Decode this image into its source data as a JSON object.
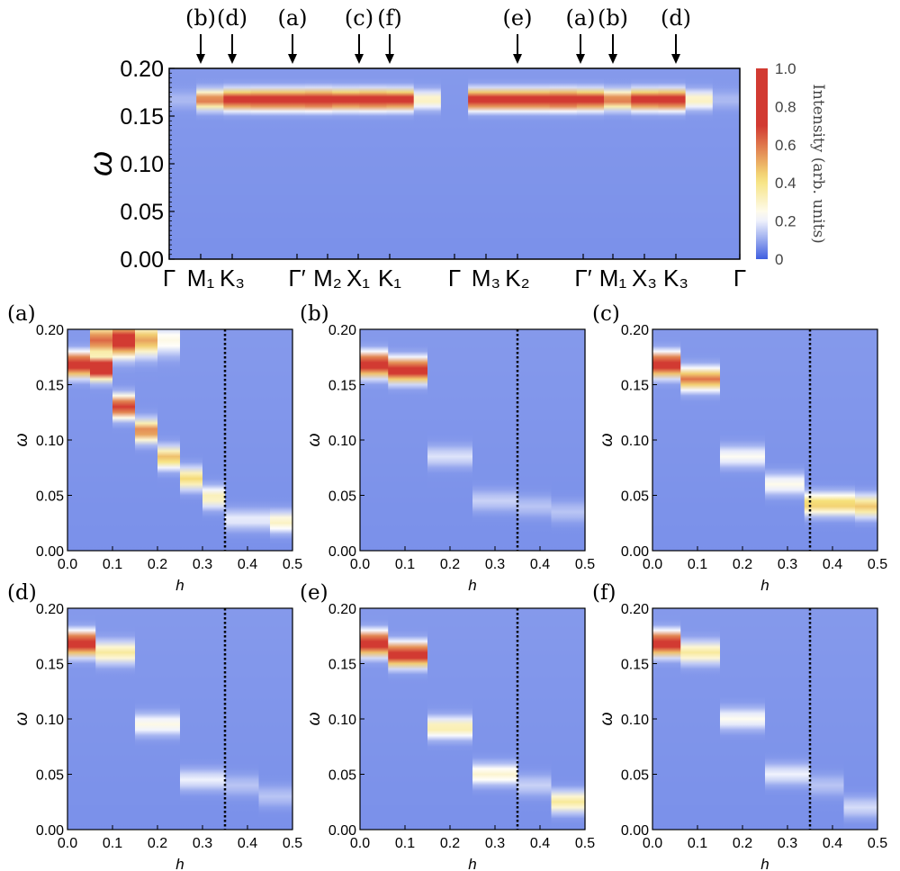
{
  "colorbar": {
    "label": "Intensity (arb. units)",
    "ticks": [
      "0",
      "0.2",
      "0.4",
      "0.6",
      "0.8",
      "1.0"
    ]
  },
  "colors": {
    "low": "#3f5fe0",
    "mid": "#ffffff",
    "yellow": "#f6e27a",
    "high": "#d23a32"
  },
  "chart_data": [
    {
      "type": "heatmap",
      "panel": "top",
      "title": "",
      "xlabel": "",
      "ylabel": "ω",
      "ylim": [
        0,
        0.2
      ],
      "yticks": [
        "0.00",
        "0.05",
        "0.10",
        "0.15",
        "0.20"
      ],
      "xtick_labels": [
        "Γ",
        "M₁",
        "K₃",
        "Γ′",
        "M₂",
        "X₁",
        "K₁",
        "Γ",
        "M₃",
        "K₂",
        "Γ′",
        "M₁",
        "X₃",
        "K₃",
        "Γ"
      ],
      "arrow_labels": [
        "(b)",
        "(d)",
        "(a)",
        "(c)",
        "(f)",
        "(e)",
        "(a)",
        "(b)",
        "(d)"
      ],
      "peak_omega": 0.167,
      "column_peak_intensity": [
        0.05,
        0.55,
        0.9,
        0.95,
        0.95,
        1.0,
        0.9,
        0.95,
        0.9,
        0.25,
        0.0,
        0.95,
        0.95,
        0.95,
        1.0,
        0.9,
        0.55,
        0.9,
        0.95,
        0.25,
        0.05
      ]
    },
    {
      "type": "heatmap",
      "panel": "(a)",
      "xlabel": "h",
      "ylabel": "ω",
      "xlim": [
        0,
        0.5
      ],
      "ylim": [
        0,
        0.2
      ],
      "dashed_x": 0.35,
      "xticks": [
        "0.0",
        "0.1",
        "0.2",
        "0.3",
        "0.4",
        "0.5"
      ],
      "yticks": [
        "0.00",
        "0.05",
        "0.10",
        "0.15",
        "0.20"
      ],
      "h": [
        0.025,
        0.075,
        0.125,
        0.175,
        0.225,
        0.275,
        0.325,
        0.375,
        0.425,
        0.475
      ],
      "omega": [
        0.168,
        0.165,
        0.13,
        0.108,
        0.084,
        0.065,
        0.048,
        0.028,
        0.028,
        0.026
      ],
      "intensity": [
        1.0,
        1.0,
        0.75,
        0.55,
        0.45,
        0.4,
        0.3,
        0.15,
        0.15,
        0.28
      ],
      "upper": [
        0,
        0.55,
        0.85,
        0.45,
        0.18,
        0,
        0,
        0,
        0,
        0
      ]
    },
    {
      "type": "heatmap",
      "panel": "(b)",
      "xlabel": "h",
      "ylabel": "ω",
      "xlim": [
        0,
        0.5
      ],
      "ylim": [
        0,
        0.2
      ],
      "dashed_x": 0.35,
      "xticks": [
        "0.0",
        "0.1",
        "0.2",
        "0.3",
        "0.4",
        "0.5"
      ],
      "yticks": [
        "0.00",
        "0.05",
        "0.10",
        "0.15",
        "0.20"
      ],
      "h": [
        0.025,
        0.1,
        0.2,
        0.3,
        0.4,
        0.45
      ],
      "omega": [
        0.168,
        0.163,
        0.085,
        0.045,
        0.04,
        0.035
      ],
      "intensity": [
        1.0,
        0.95,
        0.12,
        0.1,
        0.08,
        0.08
      ]
    },
    {
      "type": "heatmap",
      "panel": "(c)",
      "xlabel": "h",
      "ylabel": "ω",
      "xlim": [
        0,
        0.5
      ],
      "ylim": [
        0,
        0.2
      ],
      "dashed_x": 0.35,
      "xticks": [
        "0.0",
        "0.1",
        "0.2",
        "0.3",
        "0.4",
        "0.5"
      ],
      "yticks": [
        "0.00",
        "0.05",
        "0.10",
        "0.15",
        "0.20"
      ],
      "h": [
        0.025,
        0.1,
        0.2,
        0.3,
        0.375,
        0.425,
        0.475
      ],
      "omega": [
        0.168,
        0.155,
        0.085,
        0.06,
        0.042,
        0.042,
        0.04
      ],
      "intensity": [
        1.0,
        0.55,
        0.18,
        0.2,
        0.45,
        0.45,
        0.45
      ]
    },
    {
      "type": "heatmap",
      "panel": "(d)",
      "xlabel": "h",
      "ylabel": "ω",
      "xlim": [
        0,
        0.5
      ],
      "ylim": [
        0,
        0.2
      ],
      "dashed_x": 0.35,
      "xticks": [
        "0.0",
        "0.1",
        "0.2",
        "0.3",
        "0.4",
        "0.5"
      ],
      "yticks": [
        "0.00",
        "0.05",
        "0.10",
        "0.15",
        "0.20"
      ],
      "h": [
        0.025,
        0.1,
        0.2,
        0.3,
        0.4,
        0.45
      ],
      "omega": [
        0.168,
        0.16,
        0.095,
        0.045,
        0.04,
        0.03
      ],
      "intensity": [
        1.0,
        0.3,
        0.2,
        0.15,
        0.08,
        0.08
      ]
    },
    {
      "type": "heatmap",
      "panel": "(e)",
      "xlabel": "h",
      "ylabel": "ω",
      "xlim": [
        0,
        0.5
      ],
      "ylim": [
        0,
        0.2
      ],
      "dashed_x": 0.35,
      "xticks": [
        "0.0",
        "0.1",
        "0.2",
        "0.3",
        "0.4",
        "0.5"
      ],
      "yticks": [
        "0.00",
        "0.05",
        "0.10",
        "0.15",
        "0.20"
      ],
      "h": [
        0.025,
        0.1,
        0.2,
        0.3,
        0.4,
        0.45
      ],
      "omega": [
        0.168,
        0.158,
        0.092,
        0.05,
        0.04,
        0.025
      ],
      "intensity": [
        1.0,
        0.95,
        0.3,
        0.25,
        0.1,
        0.35
      ]
    },
    {
      "type": "heatmap",
      "panel": "(f)",
      "xlabel": "h",
      "ylabel": "ω",
      "xlim": [
        0,
        0.5
      ],
      "ylim": [
        0,
        0.2
      ],
      "dashed_x": 0.35,
      "xticks": [
        "0.0",
        "0.1",
        "0.2",
        "0.3",
        "0.4",
        "0.5"
      ],
      "yticks": [
        "0.00",
        "0.05",
        "0.10",
        "0.15",
        "0.20"
      ],
      "h": [
        0.025,
        0.1,
        0.2,
        0.3,
        0.4,
        0.45
      ],
      "omega": [
        0.168,
        0.16,
        0.1,
        0.05,
        0.04,
        0.02
      ],
      "intensity": [
        1.0,
        0.3,
        0.18,
        0.15,
        0.08,
        0.12
      ]
    }
  ]
}
